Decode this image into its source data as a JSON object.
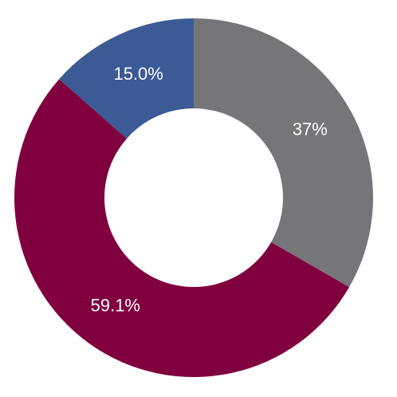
{
  "chart_data": {
    "type": "donut",
    "categories": [
      null,
      null,
      null
    ],
    "values": [
      37,
      59.1,
      15.0
    ],
    "value_labels": [
      "37%",
      "59.1%",
      "15.0%"
    ],
    "colors": [
      "#76767a",
      "#80003f",
      "#3c5a96"
    ]
  }
}
